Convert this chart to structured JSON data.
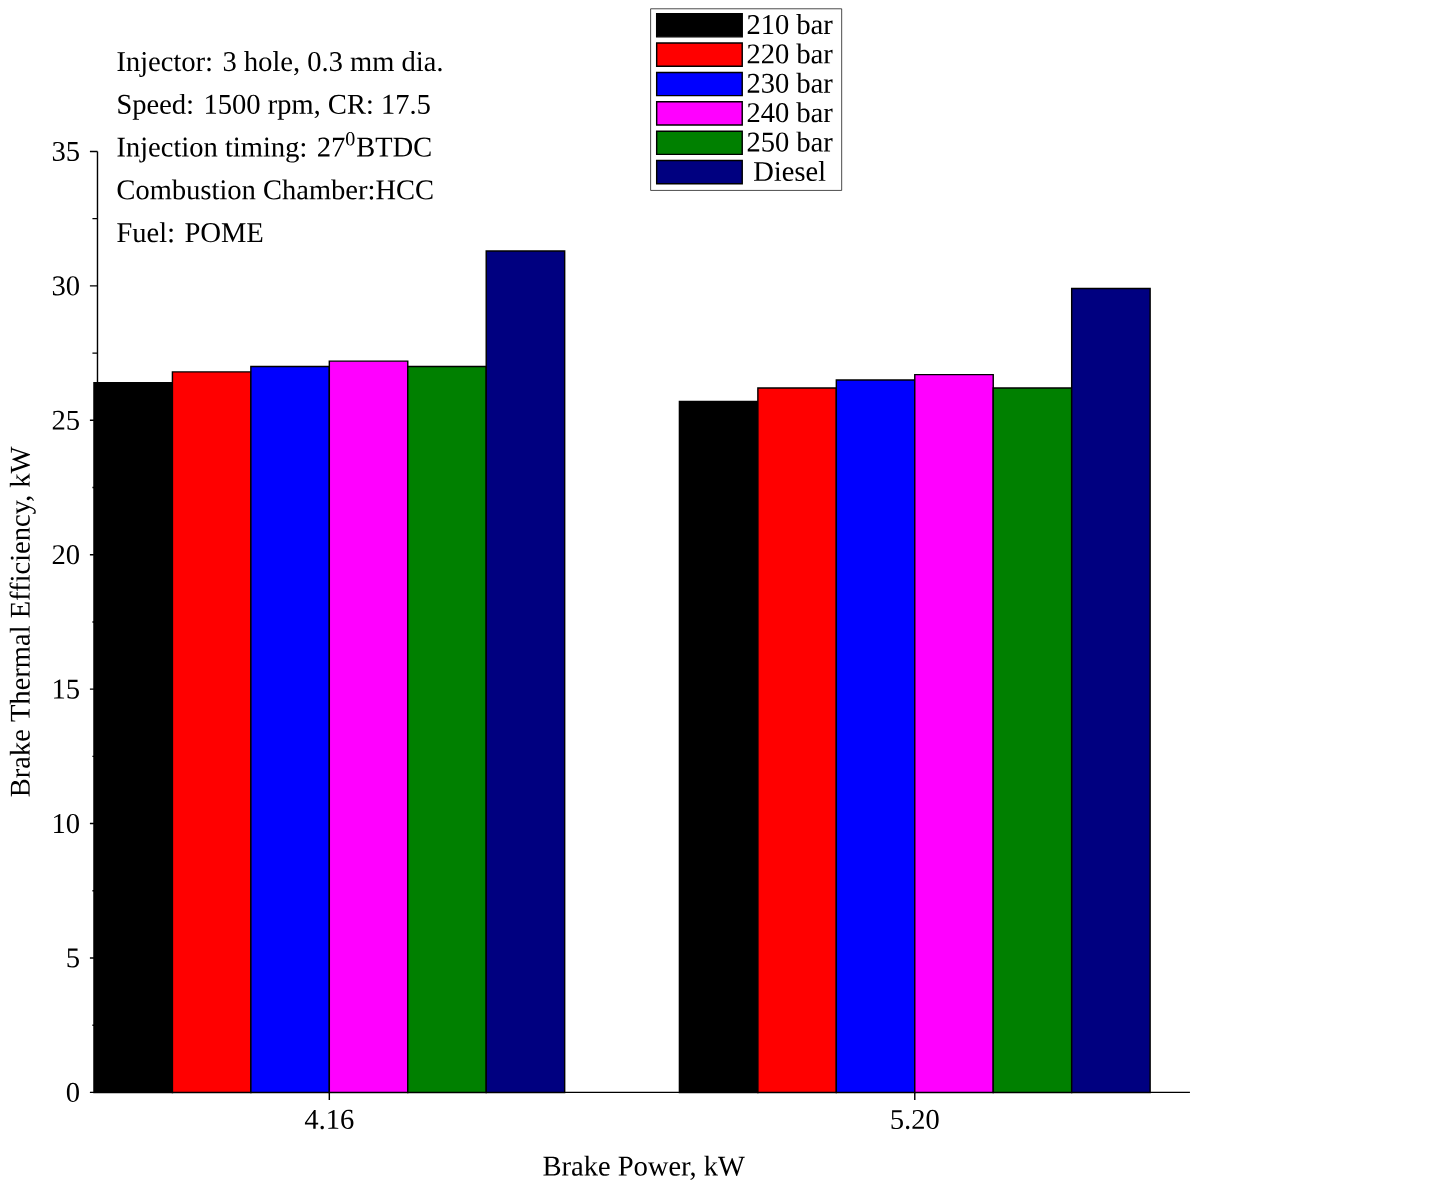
{
  "chart_data": {
    "type": "bar",
    "xlabel": "Brake Power, kW",
    "ylabel": "Brake Thermal Efficiency, kW",
    "categories": [
      "4.16",
      "5.20"
    ],
    "series": [
      {
        "name": "210 bar",
        "color": "#000000",
        "values": [
          26.4,
          25.7
        ]
      },
      {
        "name": "220 bar",
        "color": "#ff0000",
        "values": [
          26.8,
          26.2
        ]
      },
      {
        "name": "230 bar",
        "color": "#0000ff",
        "values": [
          27.0,
          26.5
        ]
      },
      {
        "name": "240 bar",
        "color": "#ff00ff",
        "values": [
          27.2,
          26.7
        ]
      },
      {
        "name": "250 bar",
        "color": "#008000",
        "values": [
          27.0,
          26.2
        ]
      },
      {
        "name": "Diesel",
        "color": "#000080",
        "values": [
          31.3,
          29.9
        ]
      }
    ],
    "ylim": [
      0,
      35
    ],
    "yticks": [
      0,
      5,
      10,
      15,
      20,
      25,
      30,
      35
    ],
    "grid": false,
    "legend": "top",
    "annotations": [
      "Injector: 3 hole, 0.3 mm dia.",
      "Speed: 1500 rpm, CR: 17.5",
      "Injection timing: 27$^{0}$BTDC",
      "Combustion Chamber:HCC",
      "Fuel: POME"
    ]
  }
}
